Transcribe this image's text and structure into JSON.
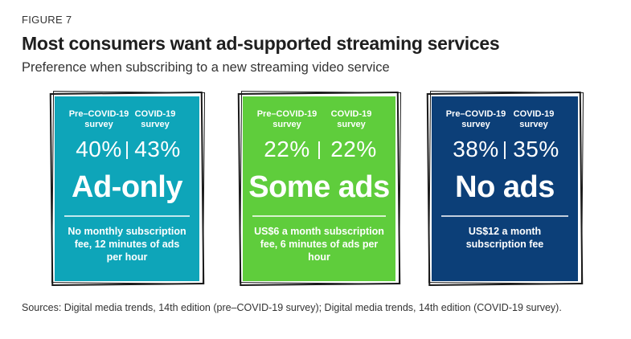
{
  "figure_label": "FIGURE 7",
  "chart_data": {
    "type": "table",
    "title": "Most consumers want ad-supported streaming services",
    "subtitle": "Preference when subscribing to a new streaming video service",
    "columns": [
      "Pre–COVID-19 survey",
      "COVID-19 survey"
    ],
    "cards": [
      {
        "name": "Ad-only",
        "pre_label": "Pre–COVID-19 survey",
        "post_label": "COVID-19 survey",
        "pre_value": "40%",
        "post_value": "43%",
        "pre": 40,
        "post": 43,
        "description": "No monthly subscription fee, 12 minutes of ads per hour",
        "color": "#0ea5b9"
      },
      {
        "name": "Some ads",
        "pre_label": "Pre–COVID-19 survey",
        "post_label": "COVID-19 survey",
        "pre_value": "22%",
        "post_value": "22%",
        "pre": 22,
        "post": 22,
        "description": "US$6 a month subscription fee, 6 minutes of ads per hour",
        "color": "#5fcd3c"
      },
      {
        "name": "No ads",
        "pre_label": "Pre–COVID-19 survey",
        "post_label": "COVID-19 survey",
        "pre_value": "38%",
        "post_value": "35%",
        "pre": 38,
        "post": 35,
        "description": "US$12 a month subscription fee",
        "color": "#0c3f78"
      }
    ]
  },
  "source": "Sources: Digital media trends, 14th edition (pre–COVID-19 survey); Digital media trends, 14th edition (COVID-19 survey)."
}
